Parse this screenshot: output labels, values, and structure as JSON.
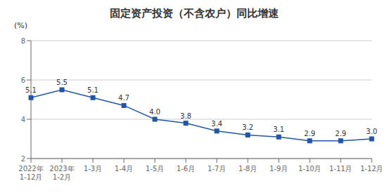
{
  "chart_data": {
    "type": "line",
    "title": "固定资产投资（不含农户）同比增速",
    "ylabel": "(%)",
    "categories": [
      "2022年\n1-12月",
      "2023年\n1-2月",
      "1-3月",
      "1-4月",
      "1-5月",
      "1-6月",
      "1-7月",
      "1-8月",
      "1-9月",
      "1-10月",
      "1-11月",
      "1-12月"
    ],
    "values": [
      5.1,
      5.5,
      5.1,
      4.7,
      4.0,
      3.8,
      3.4,
      3.2,
      3.1,
      2.9,
      2.9,
      3.0
    ],
    "value_labels": [
      "5.1",
      "5.5",
      "5.1",
      "4.7",
      "4.0",
      "3.8",
      "3.4",
      "3.2",
      "3.1",
      "2.9",
      "2.9",
      "3.0"
    ],
    "ylim": [
      2,
      8
    ],
    "yticks": [
      2,
      4,
      6,
      8
    ],
    "color": "#2255a4",
    "marker": "square",
    "grid": true,
    "data_labels": true
  }
}
